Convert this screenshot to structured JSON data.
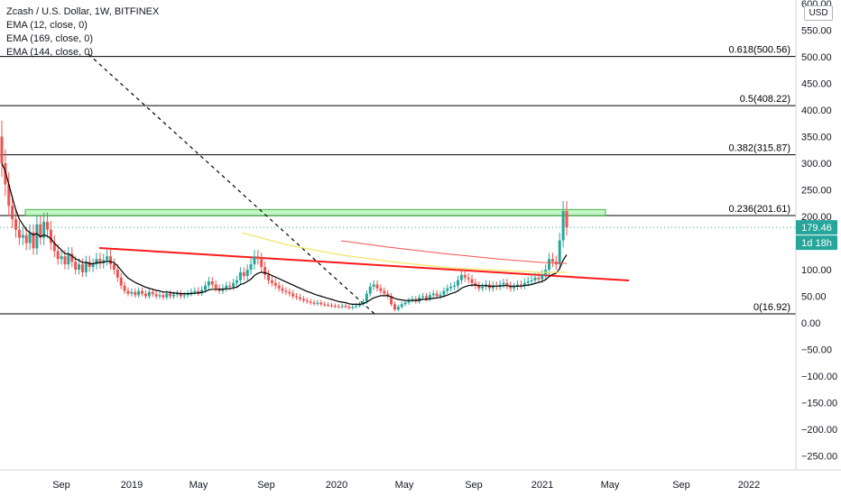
{
  "header": {
    "title": "Zcash / U.S. Dollar, 1W, BITFINEX",
    "indicators": [
      "EMA (12, close, 0)",
      "EMA (169, close, 0)",
      "EMA (144, close, 0)"
    ]
  },
  "axis_unit": "USD",
  "price_label": {
    "value": "179.46",
    "countdown": "1d 18h",
    "color": "#26a69a"
  },
  "chart_data": {
    "type": "candlestick",
    "x_ticks": [
      "Sep",
      "2019",
      "May",
      "Sep",
      "2020",
      "May",
      "Sep",
      "2021",
      "May",
      "Sep",
      "2022"
    ],
    "y_ticks": [
      "600.00",
      "550.00",
      "500.00",
      "450.00",
      "400.00",
      "350.00",
      "300.00",
      "250.00",
      "200.00",
      "150.00",
      "100.00",
      "50.00",
      "0.00",
      "−50.00",
      "−100.00",
      "−150.00",
      "−200.00",
      "−250.00"
    ],
    "y_tick_values": [
      600,
      550,
      500,
      450,
      400,
      350,
      300,
      250,
      200,
      150,
      100,
      50,
      0,
      -50,
      -100,
      -150,
      -200,
      -250
    ],
    "ylim": [
      -265,
      600
    ],
    "fib_levels": [
      {
        "label": "0.618(500.56)",
        "value": 500.56
      },
      {
        "label": "0.5(408.22)",
        "value": 408.22
      },
      {
        "label": "0.382(315.87)",
        "value": 315.87
      },
      {
        "label": "0.236(201.61)",
        "value": 201.61
      },
      {
        "label": "0(16.92)",
        "value": 16.92
      }
    ],
    "resistance_zone": {
      "low": 201,
      "high": 213
    },
    "current_price": 179.46,
    "colors": {
      "up": "#26a69a",
      "down": "#ef5350",
      "ema12": "#000000",
      "ema144": "#f5e663",
      "ema169": "#ef5350",
      "trend": "#ff1a1a",
      "zone": "#90ee90"
    },
    "closes": [
      300,
      260,
      220,
      195,
      175,
      160,
      165,
      150,
      170,
      140,
      185,
      160,
      190,
      175,
      150,
      135,
      120,
      125,
      110,
      130,
      115,
      100,
      110,
      95,
      115,
      105,
      110,
      120,
      112,
      118,
      125,
      110,
      100,
      85,
      70,
      60,
      55,
      58,
      52,
      60,
      55,
      50,
      58,
      54,
      50,
      52,
      48,
      55,
      50,
      53,
      55,
      50,
      52,
      55,
      58,
      60,
      56,
      62,
      70,
      78,
      72,
      65,
      60,
      65,
      70,
      68,
      75,
      80,
      95,
      88,
      100,
      110,
      125,
      120,
      105,
      90,
      80,
      75,
      70,
      65,
      60,
      58,
      55,
      50,
      48,
      45,
      42,
      40,
      38,
      36,
      38,
      35,
      34,
      33,
      32,
      31,
      30,
      32,
      30,
      28,
      30,
      32,
      35,
      40,
      55,
      68,
      72,
      65,
      60,
      55,
      50,
      35,
      25,
      30,
      35,
      38,
      42,
      45,
      40,
      48,
      50,
      45,
      52,
      55,
      50,
      53,
      60,
      65,
      68,
      70,
      80,
      90,
      85,
      82,
      75,
      70,
      65,
      68,
      72,
      65,
      70,
      68,
      72,
      75,
      70,
      65,
      68,
      72,
      70,
      75,
      78,
      80,
      85,
      82,
      90,
      100,
      120,
      115,
      110,
      155,
      210,
      179.46
    ],
    "ema12": [
      300,
      285,
      260,
      235,
      212,
      195,
      185,
      175,
      170,
      165,
      168,
      162,
      165,
      163,
      158,
      150,
      143,
      137,
      130,
      130,
      126,
      120,
      118,
      113,
      114,
      111,
      111,
      113,
      113,
      114,
      116,
      115,
      113,
      107,
      99,
      91,
      84,
      80,
      76,
      73,
      70,
      67,
      65,
      63,
      61,
      60,
      58,
      58,
      57,
      56,
      56,
      55,
      55,
      55,
      55,
      56,
      56,
      57,
      59,
      62,
      63,
      63,
      63,
      63,
      64,
      64,
      66,
      67,
      72,
      74,
      78,
      82,
      89,
      93,
      95,
      94,
      92,
      89,
      86,
      83,
      80,
      77,
      74,
      71,
      68,
      65,
      62,
      59,
      57,
      54,
      52,
      50,
      48,
      46,
      44,
      42,
      40,
      39,
      38,
      36,
      35,
      35,
      35,
      36,
      39,
      43,
      47,
      49,
      51,
      51,
      51,
      49,
      46,
      44,
      43,
      42,
      42,
      42,
      42,
      43,
      44,
      44,
      45,
      46,
      47,
      48,
      50,
      52,
      55,
      57,
      60,
      65,
      68,
      70,
      71,
      71,
      70,
      70,
      70,
      69,
      69,
      69,
      69,
      70,
      70,
      69,
      69,
      69,
      69,
      70,
      71,
      72,
      74,
      76,
      78,
      81,
      87,
      91,
      93,
      102,
      118,
      128
    ]
  }
}
